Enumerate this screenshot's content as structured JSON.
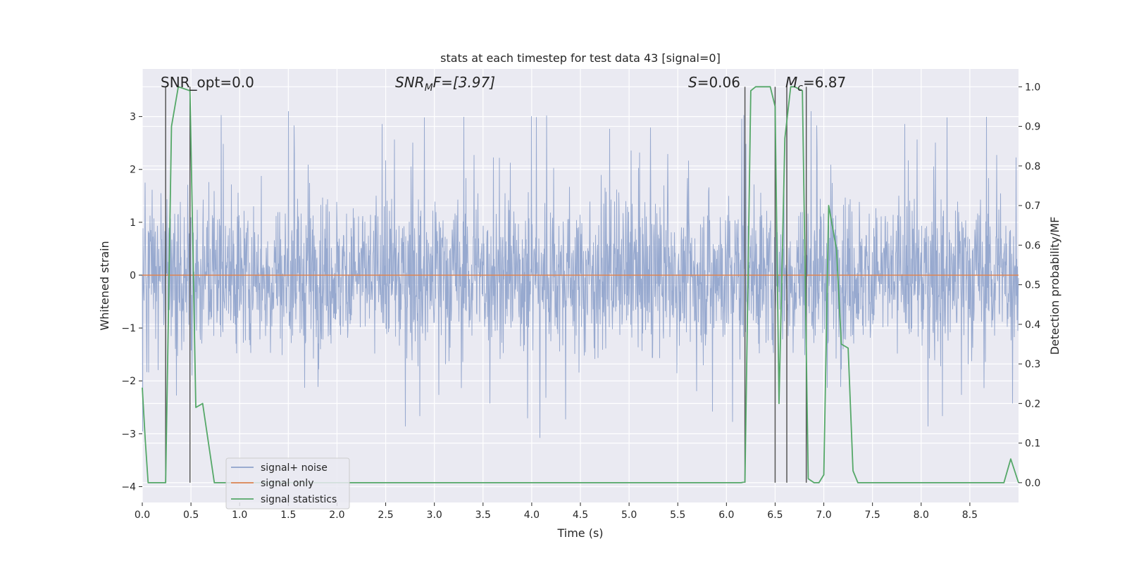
{
  "chart_data": {
    "type": "line",
    "title": "stats at each timestep for test data 43 [signal=0]",
    "xlabel": "Time (s)",
    "ylabel": "Whitened strain",
    "ylabel_right": "Detection probability/MF",
    "xlim": [
      0.0,
      9.0
    ],
    "ylim": [
      -4.3,
      3.9
    ],
    "ylim_right": [
      -0.05,
      1.045
    ],
    "x_ticks": [
      0.0,
      0.5,
      1.0,
      1.5,
      2.0,
      2.5,
      3.0,
      3.5,
      4.0,
      4.5,
      5.0,
      5.5,
      6.0,
      6.5,
      7.0,
      7.5,
      8.0,
      8.5
    ],
    "x_tick_labels": [
      "0.0",
      "0.5",
      "1.0",
      "1.5",
      "2.0",
      "2.5",
      "3.0",
      "3.5",
      "4.0",
      "4.5",
      "5.0",
      "5.5",
      "6.0",
      "6.5",
      "7.0",
      "7.5",
      "8.0",
      "8.5"
    ],
    "y_ticks": [
      3,
      2,
      1,
      0,
      -1,
      -2,
      -3,
      -4
    ],
    "y_tick_labels": [
      "3",
      "2",
      "1",
      "0",
      "−1",
      "−2",
      "−3",
      "−4"
    ],
    "y_right_ticks": [
      1.0,
      0.9,
      0.8,
      0.7,
      0.6,
      0.5,
      0.4,
      0.3,
      0.2,
      0.1,
      0.0
    ],
    "y_right_tick_labels": [
      "1.0",
      "0.9",
      "0.8",
      "0.7",
      "0.6",
      "0.5",
      "0.4",
      "0.3",
      "0.2",
      "0.1",
      "0.0"
    ],
    "annotations": {
      "snr_opt": "SNR_opt=0.0",
      "snr_mf_main": "SNR",
      "snr_mf_sub": "M",
      "snr_mf_rest": "F=[3.97]",
      "s_main": "S",
      "s_rest": "=0.06",
      "mc_main": "M",
      "mc_sub": "c",
      "mc_rest": "=6.87"
    },
    "legend": {
      "position": "lower-left",
      "entries": [
        "signal+ noise",
        "signal only",
        "signal statistics"
      ]
    },
    "colors": {
      "noise": "#8ea2cb",
      "signal": "#dd8452",
      "stats": "#55a868",
      "vlines": "#555555",
      "plot_bg": "#eaeaf2",
      "grid": "#ffffff"
    },
    "noise_envelope": {
      "seed": 43,
      "core_amplitude": 1.2,
      "max_amplitude": 3.4
    },
    "detection_vlines": [
      0.24,
      0.49,
      6.19,
      6.5,
      6.62,
      6.82
    ],
    "series": [
      {
        "name": "signal statistics",
        "x": [
          0.0,
          0.03,
          0.06,
          0.24,
          0.3,
          0.37,
          0.49,
          0.55,
          0.62,
          0.74,
          6.15,
          6.19,
          6.25,
          6.3,
          6.45,
          6.5,
          6.54,
          6.6,
          6.66,
          6.7,
          6.78,
          6.84,
          6.9,
          6.95,
          7.0,
          7.05,
          7.13,
          7.18,
          7.25,
          7.3,
          7.35,
          7.4,
          7.45,
          8.85,
          8.92,
          9.0
        ],
        "y": [
          0.24,
          0.11,
          0.0,
          0.0,
          0.9,
          1.0,
          0.99,
          0.19,
          0.2,
          0.0,
          0.0,
          0.002,
          0.99,
          1.0,
          1.0,
          0.95,
          0.2,
          0.87,
          1.0,
          1.0,
          0.99,
          0.01,
          0.0,
          0.0,
          0.02,
          0.7,
          0.59,
          0.35,
          0.34,
          0.03,
          0.0,
          0.0,
          0.0,
          0.0,
          0.06,
          0.0
        ]
      },
      {
        "name": "signal only",
        "x": [
          0.0,
          9.0
        ],
        "y": [
          0.0,
          0.0
        ]
      }
    ]
  }
}
